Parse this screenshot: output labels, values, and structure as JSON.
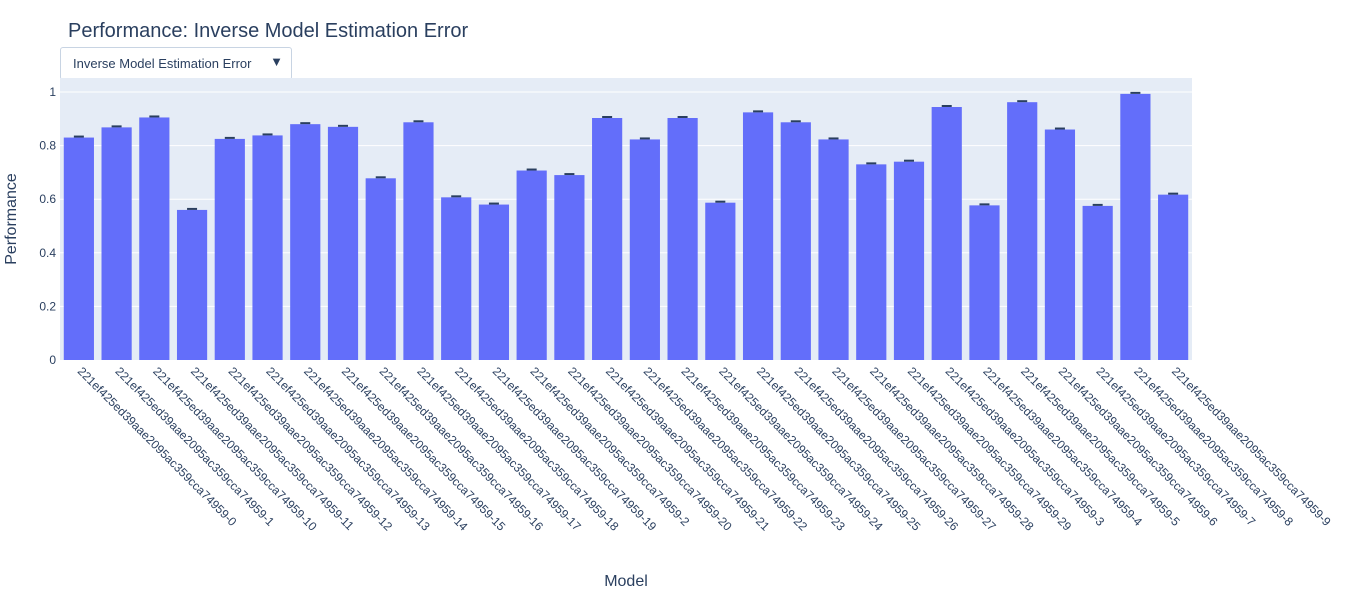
{
  "title": "Performance: Inverse Model Estimation Error",
  "dropdown": {
    "selected": "Inverse Model Estimation Error",
    "arrow_icon": "triangle-down-icon"
  },
  "chart_data": {
    "type": "bar",
    "title": "Performance: Inverse Model Estimation Error",
    "xlabel": "Model",
    "ylabel": "Performance",
    "ylim": [
      0,
      1.0
    ],
    "yticks": [
      "0",
      "0.2",
      "0.4",
      "0.6",
      "0.8",
      "1"
    ],
    "grid": true,
    "bar_color": "#636efa",
    "error_bar_color": "#2a3f5f",
    "categories": [
      "221ef425ed39aae2095ac359cca74959-0",
      "221ef425ed39aae2095ac359cca74959-1",
      "221ef425ed39aae2095ac359cca74959-10",
      "221ef425ed39aae2095ac359cca74959-11",
      "221ef425ed39aae2095ac359cca74959-12",
      "221ef425ed39aae2095ac359cca74959-13",
      "221ef425ed39aae2095ac359cca74959-14",
      "221ef425ed39aae2095ac359cca74959-15",
      "221ef425ed39aae2095ac359cca74959-16",
      "221ef425ed39aae2095ac359cca74959-17",
      "221ef425ed39aae2095ac359cca74959-18",
      "221ef425ed39aae2095ac359cca74959-19",
      "221ef425ed39aae2095ac359cca74959-2",
      "221ef425ed39aae2095ac359cca74959-20",
      "221ef425ed39aae2095ac359cca74959-21",
      "221ef425ed39aae2095ac359cca74959-22",
      "221ef425ed39aae2095ac359cca74959-23",
      "221ef425ed39aae2095ac359cca74959-24",
      "221ef425ed39aae2095ac359cca74959-25",
      "221ef425ed39aae2095ac359cca74959-26",
      "221ef425ed39aae2095ac359cca74959-27",
      "221ef425ed39aae2095ac359cca74959-28",
      "221ef425ed39aae2095ac359cca74959-29",
      "221ef425ed39aae2095ac359cca74959-3",
      "221ef425ed39aae2095ac359cca74959-4",
      "221ef425ed39aae2095ac359cca74959-5",
      "221ef425ed39aae2095ac359cca74959-6",
      "221ef425ed39aae2095ac359cca74959-7",
      "221ef425ed39aae2095ac359cca74959-8",
      "221ef425ed39aae2095ac359cca74959-9"
    ],
    "values": [
      0.83,
      0.868,
      0.905,
      0.56,
      0.825,
      0.838,
      0.88,
      0.87,
      0.678,
      0.887,
      0.607,
      0.58,
      0.707,
      0.69,
      0.903,
      0.823,
      0.903,
      0.587,
      0.924,
      0.887,
      0.823,
      0.73,
      0.74,
      0.944,
      0.577,
      0.962,
      0.86,
      0.575,
      0.993,
      0.617
    ]
  }
}
